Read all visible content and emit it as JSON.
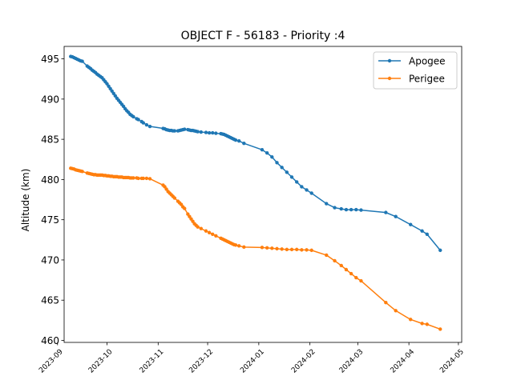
{
  "chart_data": {
    "type": "line",
    "title": "OBJECT F - 56183 - Priority :4",
    "xlabel": "",
    "ylabel": "Altitude (km)",
    "xlim": [
      "2023-09-05",
      "2024-05-03"
    ],
    "ylim": [
      459.75,
      496.55
    ],
    "x_ticks": [
      "2023-09",
      "2023-10",
      "2023-11",
      "2023-12",
      "2024-01",
      "2024-02",
      "2024-03",
      "2024-04",
      "2024-05"
    ],
    "y_ticks": [
      460,
      465,
      470,
      475,
      480,
      485,
      490,
      495
    ],
    "legend_position": "upper right",
    "grid": false,
    "series": [
      {
        "name": "Apogee",
        "color": "#1f77b4",
        "marker": "circle",
        "x": [
          "2023-09-09",
          "2023-09-10",
          "2023-09-11",
          "2023-09-12",
          "2023-09-13",
          "2023-09-14",
          "2023-09-15",
          "2023-09-16",
          "2023-09-19",
          "2023-09-20",
          "2023-09-21",
          "2023-09-22",
          "2023-09-23",
          "2023-09-24",
          "2023-09-25",
          "2023-09-26",
          "2023-09-27",
          "2023-09-28",
          "2023-09-29",
          "2023-09-30",
          "2023-10-01",
          "2023-10-02",
          "2023-10-03",
          "2023-10-04",
          "2023-10-05",
          "2023-10-06",
          "2023-10-07",
          "2023-10-08",
          "2023-10-09",
          "2023-10-10",
          "2023-10-11",
          "2023-10-12",
          "2023-10-13",
          "2023-10-14",
          "2023-10-15",
          "2023-10-16",
          "2023-10-17",
          "2023-10-19",
          "2023-10-20",
          "2023-10-22",
          "2023-10-23",
          "2023-10-25",
          "2023-10-27",
          "2023-11-04",
          "2023-11-05",
          "2023-11-06",
          "2023-11-07",
          "2023-11-08",
          "2023-11-09",
          "2023-11-10",
          "2023-11-11",
          "2023-11-13",
          "2023-11-14",
          "2023-11-15",
          "2023-11-16",
          "2023-11-17",
          "2023-11-19",
          "2023-11-20",
          "2023-11-21",
          "2023-11-22",
          "2023-11-23",
          "2023-11-24",
          "2023-11-25",
          "2023-11-27",
          "2023-11-30",
          "2023-12-02",
          "2023-12-04",
          "2023-12-06",
          "2023-12-09",
          "2023-12-10",
          "2023-12-11",
          "2023-12-12",
          "2023-12-13",
          "2023-12-14",
          "2023-12-15",
          "2023-12-16",
          "2023-12-17",
          "2023-12-18",
          "2023-12-20",
          "2023-12-23",
          "2024-01-03",
          "2024-01-06",
          "2024-01-09",
          "2024-01-12",
          "2024-01-15",
          "2024-01-18",
          "2024-01-21",
          "2024-01-24",
          "2024-01-27",
          "2024-01-30",
          "2024-02-02",
          "2024-02-11",
          "2024-02-16",
          "2024-02-20",
          "2024-02-23",
          "2024-02-26",
          "2024-02-29",
          "2024-03-03",
          "2024-03-18",
          "2024-03-24",
          "2024-04-02",
          "2024-04-09",
          "2024-04-12",
          "2024-04-20"
        ],
        "y": [
          495.3,
          495.25,
          495.15,
          495.05,
          494.95,
          494.85,
          494.75,
          494.7,
          494.1,
          493.95,
          493.8,
          493.6,
          493.45,
          493.3,
          493.1,
          492.95,
          492.8,
          492.65,
          492.4,
          492.15,
          491.9,
          491.6,
          491.3,
          491.0,
          490.7,
          490.4,
          490.1,
          489.85,
          489.6,
          489.35,
          489.1,
          488.8,
          488.55,
          488.35,
          488.1,
          487.95,
          487.8,
          487.55,
          487.45,
          487.2,
          487.05,
          486.8,
          486.6,
          486.35,
          486.3,
          486.2,
          486.15,
          486.1,
          486.1,
          486.05,
          486.05,
          486.05,
          486.1,
          486.15,
          486.2,
          486.25,
          486.2,
          486.15,
          486.1,
          486.1,
          486.05,
          486.0,
          485.95,
          485.9,
          485.85,
          485.8,
          485.8,
          485.75,
          485.7,
          485.65,
          485.6,
          485.5,
          485.4,
          485.3,
          485.2,
          485.1,
          485.0,
          484.9,
          484.8,
          484.5,
          483.7,
          483.3,
          482.8,
          482.1,
          481.5,
          480.9,
          480.3,
          479.7,
          479.1,
          478.7,
          478.3,
          477.0,
          476.5,
          476.35,
          476.25,
          476.25,
          476.25,
          476.2,
          475.9,
          475.4,
          474.4,
          473.6,
          473.2,
          471.2
        ]
      },
      {
        "name": "Perigee",
        "color": "#ff7f0e",
        "marker": "circle",
        "x": [
          "2023-09-09",
          "2023-09-10",
          "2023-09-11",
          "2023-09-12",
          "2023-09-13",
          "2023-09-14",
          "2023-09-15",
          "2023-09-16",
          "2023-09-19",
          "2023-09-20",
          "2023-09-21",
          "2023-09-22",
          "2023-09-23",
          "2023-09-24",
          "2023-09-25",
          "2023-09-26",
          "2023-09-27",
          "2023-09-28",
          "2023-09-29",
          "2023-09-30",
          "2023-10-01",
          "2023-10-02",
          "2023-10-03",
          "2023-10-04",
          "2023-10-05",
          "2023-10-06",
          "2023-10-07",
          "2023-10-08",
          "2023-10-09",
          "2023-10-10",
          "2023-10-11",
          "2023-10-12",
          "2023-10-13",
          "2023-10-14",
          "2023-10-15",
          "2023-10-16",
          "2023-10-17",
          "2023-10-19",
          "2023-10-20",
          "2023-10-22",
          "2023-10-23",
          "2023-10-25",
          "2023-10-27",
          "2023-11-04",
          "2023-11-05",
          "2023-11-06",
          "2023-11-07",
          "2023-11-08",
          "2023-11-09",
          "2023-11-10",
          "2023-11-11",
          "2023-11-13",
          "2023-11-14",
          "2023-11-15",
          "2023-11-16",
          "2023-11-17",
          "2023-11-19",
          "2023-11-20",
          "2023-11-21",
          "2023-11-22",
          "2023-11-23",
          "2023-11-24",
          "2023-11-25",
          "2023-11-27",
          "2023-11-30",
          "2023-12-02",
          "2023-12-04",
          "2023-12-06",
          "2023-12-09",
          "2023-12-10",
          "2023-12-11",
          "2023-12-12",
          "2023-12-13",
          "2023-12-14",
          "2023-12-15",
          "2023-12-16",
          "2023-12-17",
          "2023-12-18",
          "2023-12-20",
          "2023-12-23",
          "2024-01-03",
          "2024-01-06",
          "2024-01-09",
          "2024-01-12",
          "2024-01-15",
          "2024-01-18",
          "2024-01-21",
          "2024-01-24",
          "2024-01-27",
          "2024-01-30",
          "2024-02-02",
          "2024-02-11",
          "2024-02-16",
          "2024-02-20",
          "2024-02-23",
          "2024-02-26",
          "2024-02-29",
          "2024-03-03",
          "2024-03-18",
          "2024-03-24",
          "2024-04-02",
          "2024-04-09",
          "2024-04-12",
          "2024-04-20"
        ],
        "y": [
          481.4,
          481.35,
          481.3,
          481.2,
          481.15,
          481.1,
          481.05,
          481.0,
          480.8,
          480.75,
          480.7,
          480.65,
          480.6,
          480.6,
          480.55,
          480.55,
          480.55,
          480.55,
          480.5,
          480.5,
          480.45,
          480.45,
          480.4,
          480.4,
          480.35,
          480.35,
          480.35,
          480.3,
          480.3,
          480.3,
          480.25,
          480.25,
          480.25,
          480.25,
          480.2,
          480.2,
          480.2,
          480.2,
          480.15,
          480.15,
          480.15,
          480.15,
          480.1,
          479.3,
          479.1,
          478.8,
          478.5,
          478.3,
          478.1,
          477.9,
          477.7,
          477.3,
          477.1,
          476.9,
          476.6,
          476.4,
          475.7,
          475.4,
          475.1,
          474.8,
          474.5,
          474.3,
          474.1,
          473.9,
          473.6,
          473.4,
          473.2,
          473.0,
          472.7,
          472.6,
          472.5,
          472.4,
          472.3,
          472.2,
          472.1,
          472.0,
          471.9,
          471.85,
          471.75,
          471.6,
          471.55,
          471.5,
          471.45,
          471.4,
          471.35,
          471.3,
          471.3,
          471.3,
          471.25,
          471.25,
          471.2,
          470.6,
          469.9,
          469.3,
          468.8,
          468.3,
          467.8,
          467.4,
          464.7,
          463.7,
          462.6,
          462.1,
          462.0,
          461.4
        ]
      }
    ]
  }
}
